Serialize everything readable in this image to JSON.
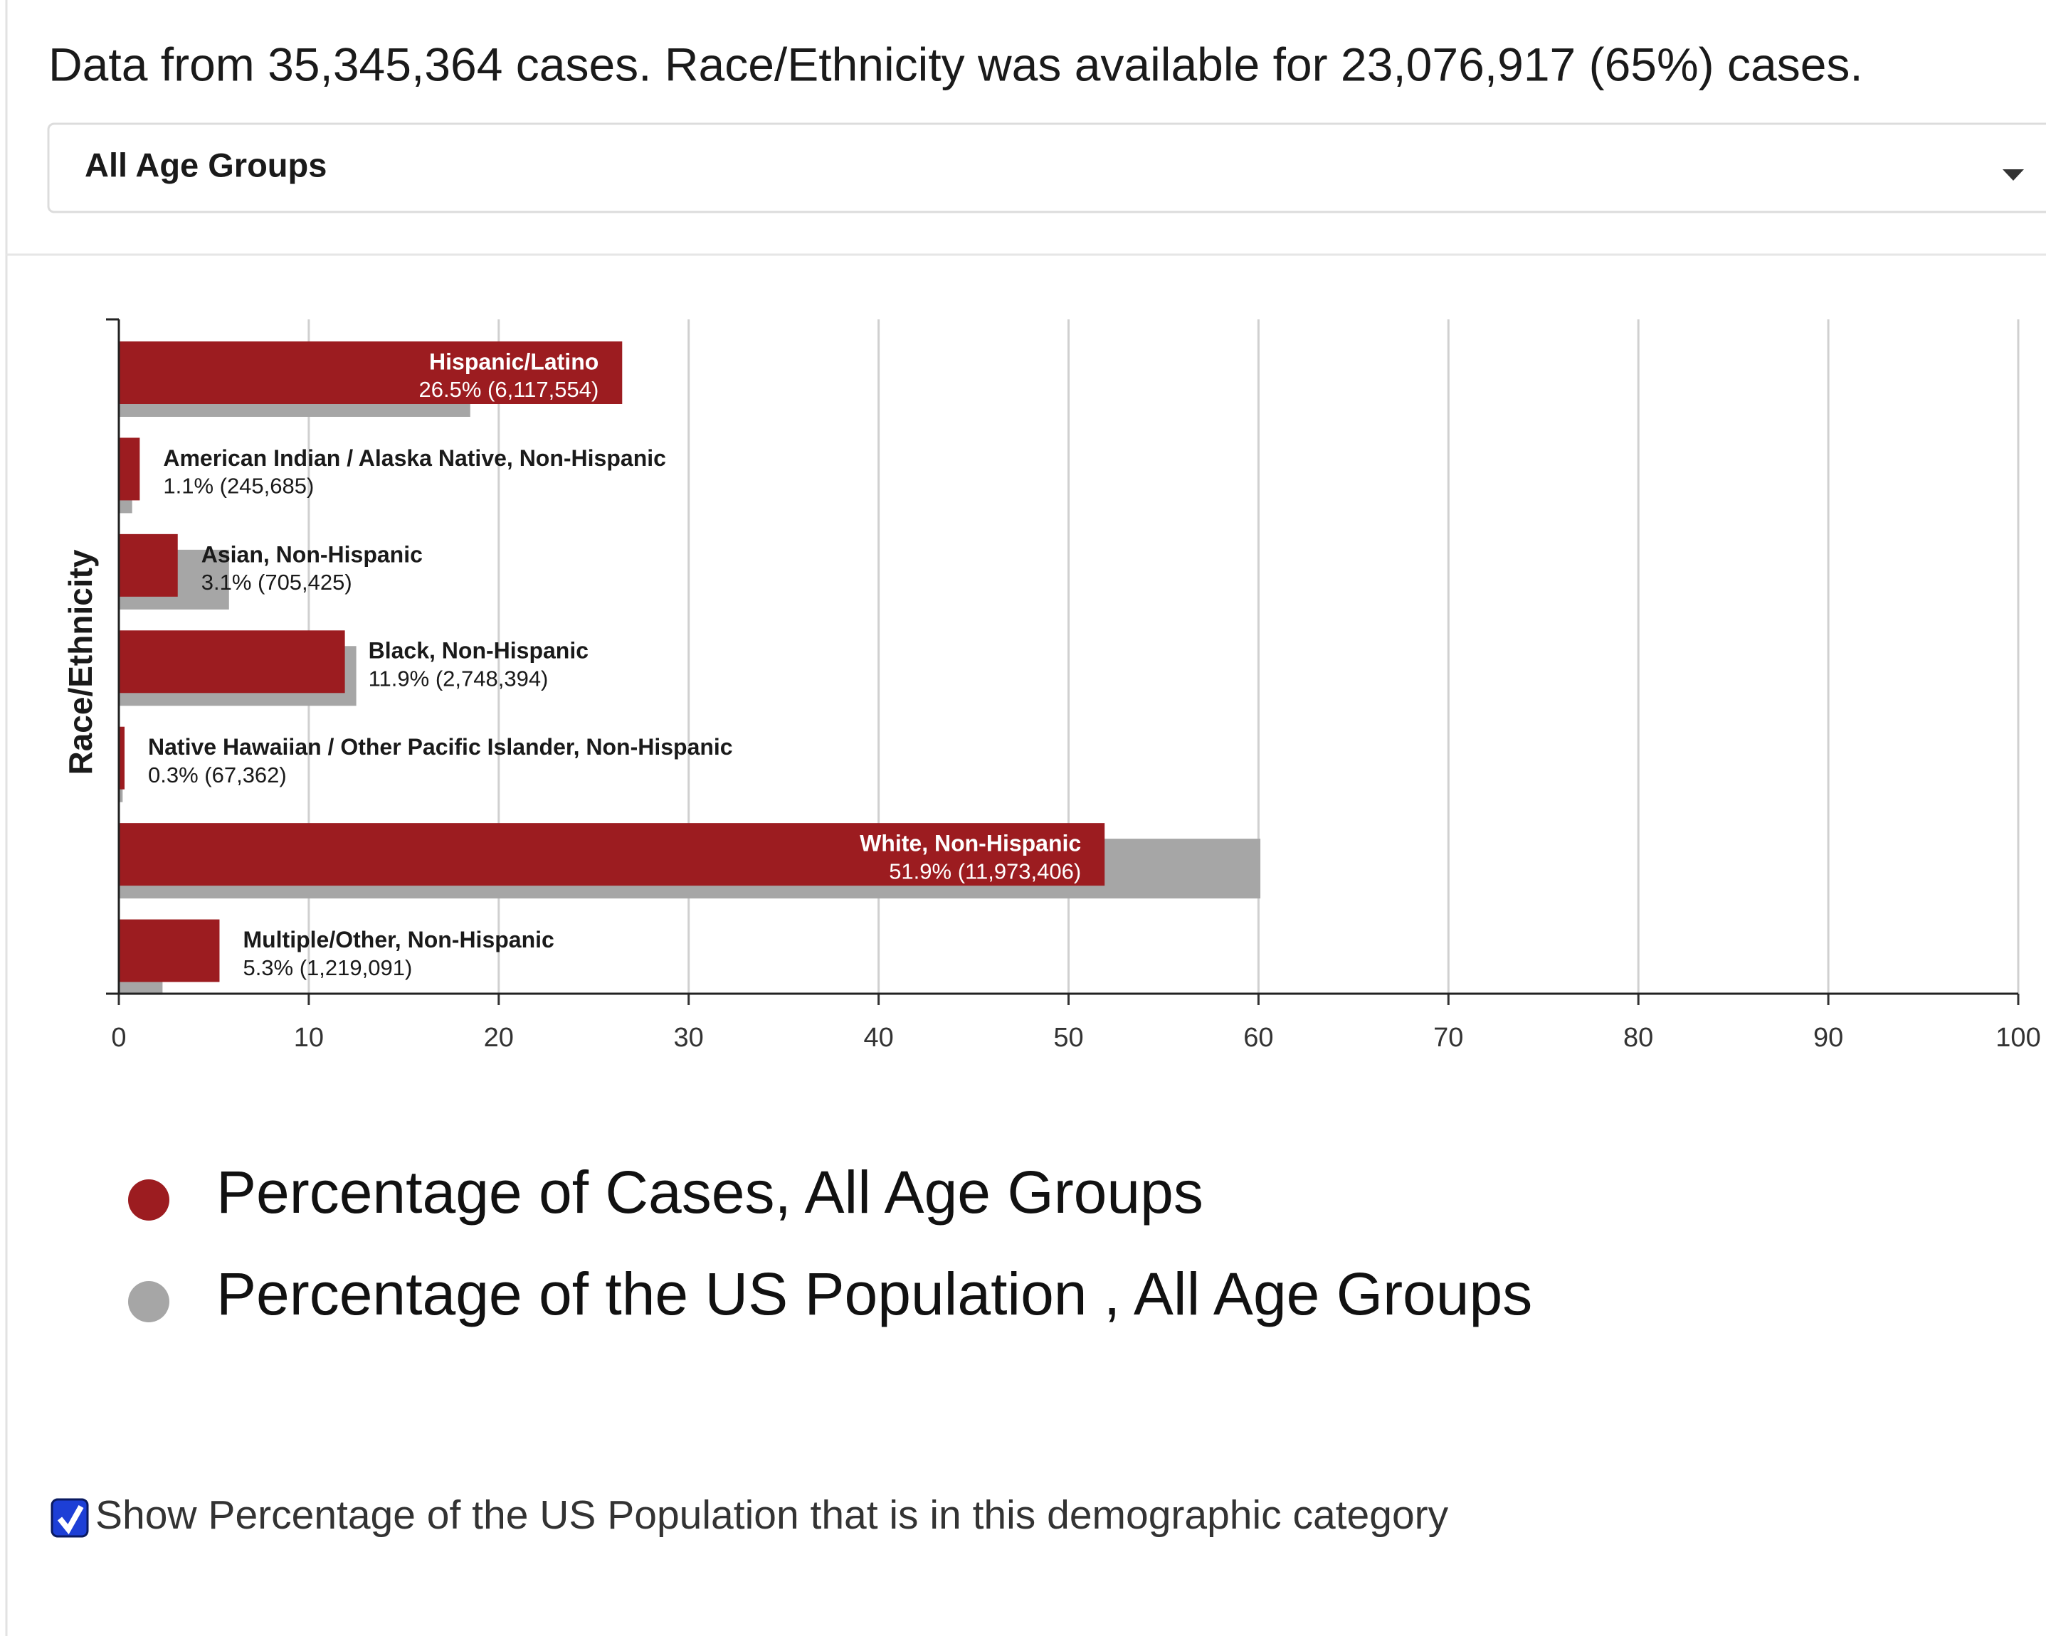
{
  "header": {
    "summary": "Data from 35,345,364 cases. Race/Ethnicity was available for 23,076,917 (65%) cases."
  },
  "dropdown": {
    "selected": "All Age Groups"
  },
  "chart_data": {
    "type": "bar",
    "orientation": "horizontal",
    "y_axis_label": "Race/Ethnicity",
    "categories": [
      "Hispanic/Latino",
      "American Indian / Alaska Native, Non-Hispanic",
      "Asian, Non-Hispanic",
      "Black, Non-Hispanic",
      "Native Hawaiian / Other Pacific Islander, Non-Hispanic",
      "White, Non-Hispanic",
      "Multiple/Other, Non-Hispanic"
    ],
    "series": [
      {
        "name": "Percentage of Cases, All Age Groups",
        "color": "#9c1c20",
        "values": [
          26.5,
          1.1,
          3.1,
          11.9,
          0.3,
          51.9,
          5.3
        ],
        "value_labels": [
          "26.5% (6,117,554)",
          "1.1% (245,685)",
          "3.1% (705,425)",
          "11.9% (2,748,394)",
          "0.3% (67,362)",
          "51.9% (11,973,406)",
          "5.3% (1,219,091)"
        ]
      },
      {
        "name": "Percentage of the US Population , All Age Groups",
        "color": "#a6a6a6",
        "values": [
          18.5,
          0.7,
          5.8,
          12.5,
          0.2,
          60.1,
          2.3
        ]
      }
    ],
    "xlim": [
      0,
      100
    ],
    "xticks": [
      0,
      10,
      20,
      30,
      40,
      50,
      60,
      70,
      80,
      90,
      100
    ],
    "grid": true,
    "legend": "bottom"
  },
  "checkbox": {
    "label": "Show Percentage of the US Population that is in this demographic category",
    "checked": true
  }
}
